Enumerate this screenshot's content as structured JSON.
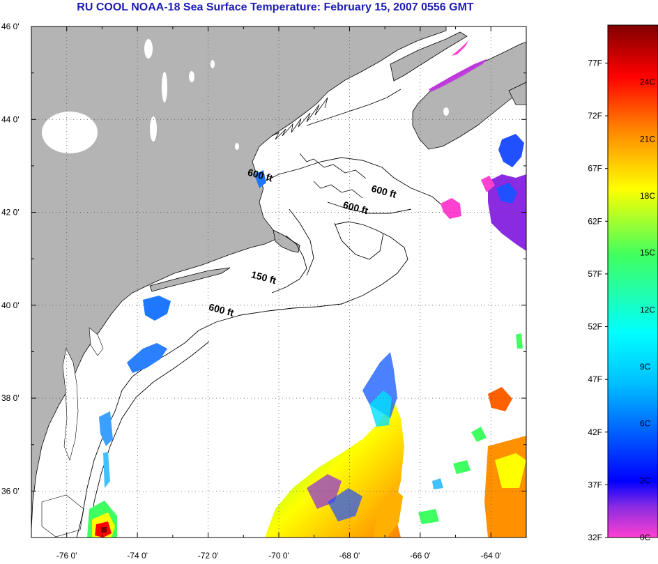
{
  "title": "RU COOL  NOAA-18  Sea Surface Temperature:  February 15, 2007 0556 GMT",
  "map": {
    "lat_range": [
      35,
      46
    ],
    "lon_range": [
      -77,
      -63
    ],
    "lat_labels": [
      "46 0'",
      "44 0'",
      "42 0'",
      "40 0'",
      "38 0'",
      "36 0'"
    ],
    "lon_labels": [
      "-76 0'",
      "-74 0'",
      "-72 0'",
      "-70 0'",
      "-68 0'",
      "-66 0'",
      "-64 0'"
    ],
    "contour_labels": [
      {
        "text": "600 ft",
        "lon": -70.9,
        "lat": 42.8
      },
      {
        "text": "600 ft",
        "lon": -67.4,
        "lat": 42.45
      },
      {
        "text": "600 ft",
        "lon": -68.2,
        "lat": 42.1
      },
      {
        "text": "150 ft",
        "lon": -70.8,
        "lat": 40.6
      },
      {
        "text": "600 ft",
        "lon": -72.0,
        "lat": 39.9
      }
    ],
    "colors": {
      "land": "#b4b4b4",
      "ocean": "#ffffff",
      "grid": "#555555"
    }
  },
  "color_scale": {
    "fahrenheit_labels": [
      "77F",
      "72F",
      "67F",
      "62F",
      "57F",
      "52F",
      "47F",
      "42F",
      "37F",
      "32F"
    ],
    "celsius_labels": [
      "24C",
      "21C",
      "18C",
      "15C",
      "12C",
      "9C",
      "6C",
      "3C",
      "0C"
    ],
    "colors": [
      "#ff40d0",
      "#8a2be2",
      "#0000ff",
      "#00bfff",
      "#00ffff",
      "#40ff60",
      "#ffff00",
      "#ff8000",
      "#ff0000",
      "#800000"
    ]
  }
}
